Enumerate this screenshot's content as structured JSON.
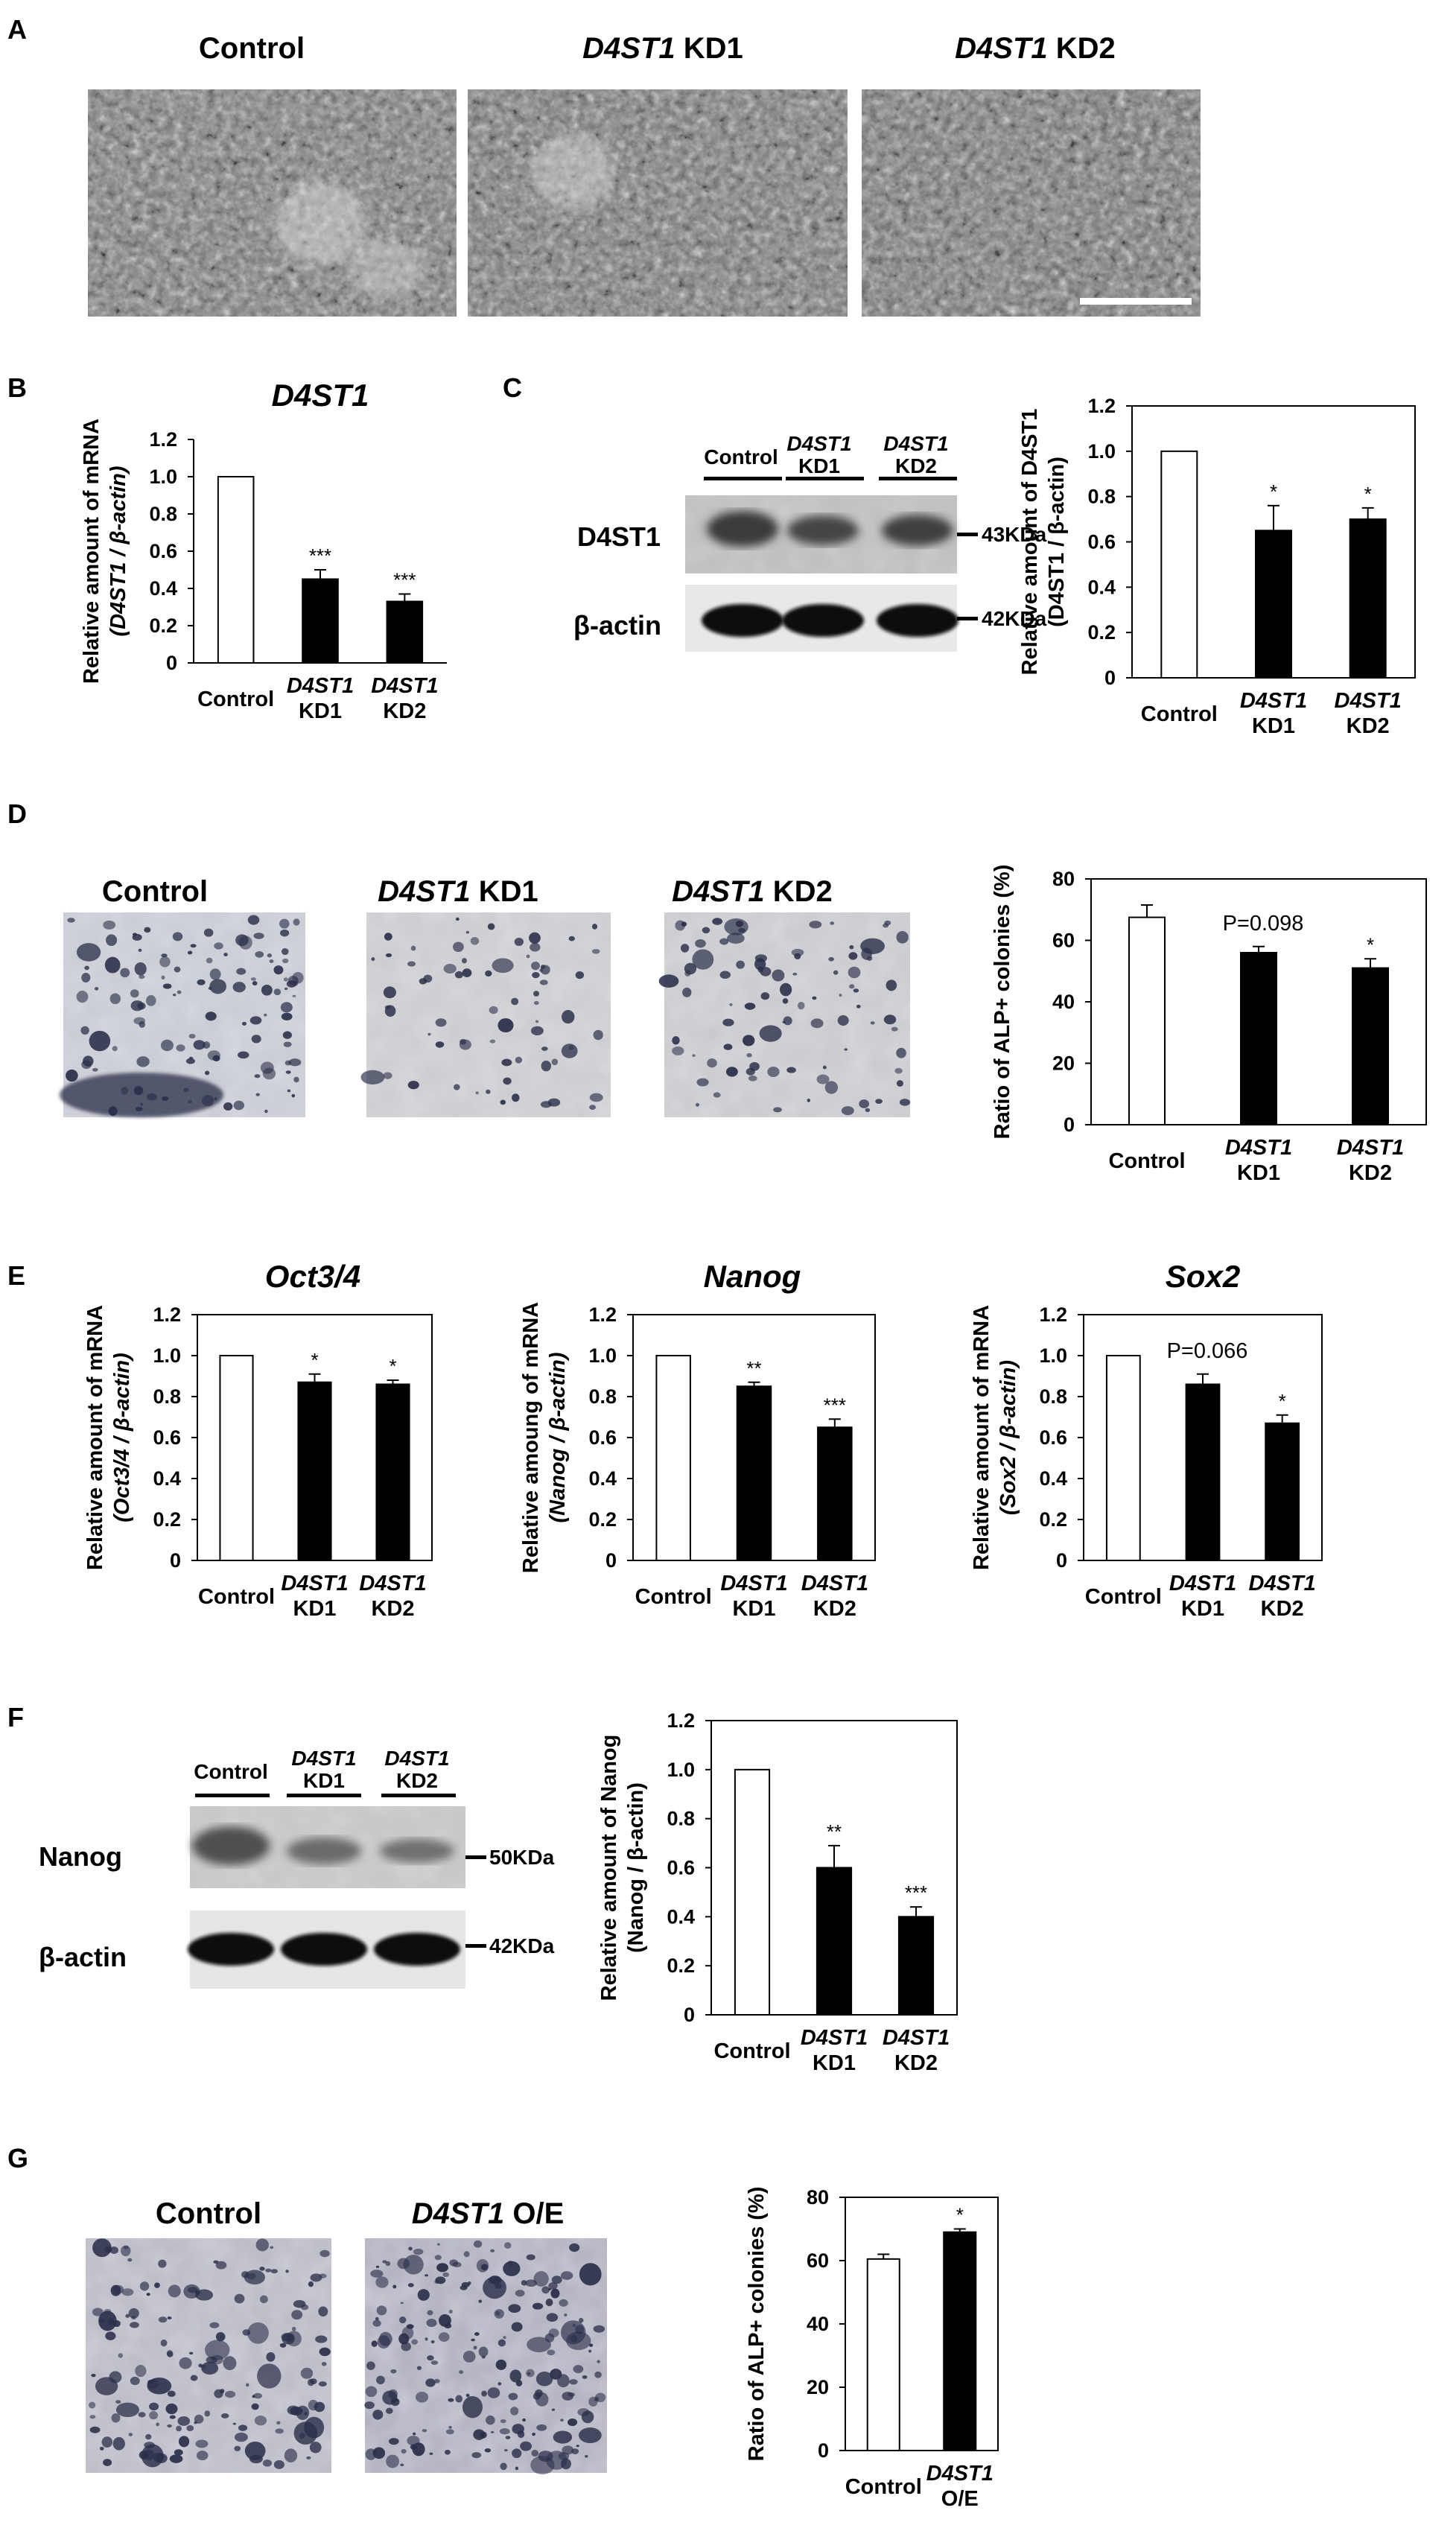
{
  "panels": {
    "A": {
      "letter": "A",
      "images": [
        {
          "gene": "",
          "label": "Control"
        },
        {
          "gene": "D4ST1",
          "label": " KD1"
        },
        {
          "gene": "D4ST1",
          "label": " KD2"
        }
      ]
    },
    "B": {
      "letter": "B"
    },
    "C": {
      "letter": "C",
      "blot": {
        "lanes": [
          {
            "line1": "Control",
            "line2": ""
          },
          {
            "line1": "D4ST1",
            "line2": "KD1"
          },
          {
            "line1": "D4ST1",
            "line2": "KD2"
          }
        ],
        "rows": [
          {
            "protein": "D4ST1",
            "size": "43KDa"
          },
          {
            "protein": "β-actin",
            "size": "42KDa"
          }
        ]
      }
    },
    "D": {
      "letter": "D",
      "images": [
        {
          "gene": "",
          "label": "Control"
        },
        {
          "gene": "D4ST1",
          "label": " KD1"
        },
        {
          "gene": "D4ST1",
          "label": " KD2"
        }
      ]
    },
    "E": {
      "letter": "E"
    },
    "F": {
      "letter": "F",
      "blot": {
        "lanes": [
          {
            "line1": "Control",
            "line2": ""
          },
          {
            "line1": "D4ST1",
            "line2": "KD1"
          },
          {
            "line1": "D4ST1",
            "line2": "KD2"
          }
        ],
        "rows": [
          {
            "protein": "Nanog",
            "size": "50KDa"
          },
          {
            "protein": "β-actin",
            "size": "42KDa"
          }
        ]
      }
    },
    "G": {
      "letter": "G",
      "images": [
        {
          "gene": "",
          "label": "Control"
        },
        {
          "gene": "D4ST1",
          "label": " O/E"
        }
      ]
    }
  },
  "colors": {
    "control_bar": "#ffffff",
    "treated_bar": "#000000",
    "image_gray": "#8a8a8a",
    "stain": "#2a2f4a"
  },
  "chart_data": [
    {
      "id": "B",
      "type": "bar",
      "title": "D4ST1",
      "title_italic": true,
      "ylabel_line1": "Relative amount of mRNA",
      "ylabel_line2": "(D4ST1 / β-actin)",
      "ylabel_line2_italic": true,
      "categories": [
        [
          "Control"
        ],
        [
          "D4ST1",
          "KD1"
        ],
        [
          "D4ST1",
          "KD2"
        ]
      ],
      "values": [
        1.0,
        0.45,
        0.33
      ],
      "errors": [
        0,
        0.05,
        0.04
      ],
      "annotations": [
        "",
        "***",
        "***"
      ],
      "ylim": [
        0,
        1.2
      ],
      "yticks": [
        "0",
        "0.2",
        "0.4",
        "0.6",
        "0.8",
        "1.0",
        "1.2"
      ],
      "frame": "axes"
    },
    {
      "id": "C",
      "type": "bar",
      "title": "",
      "ylabel_line1": "Relative amount of D4ST1",
      "ylabel_line2": "(D4ST1 / β-actin)",
      "ylabel_line2_italic": false,
      "categories": [
        [
          "Control"
        ],
        [
          "D4ST1",
          "KD1"
        ],
        [
          "D4ST1",
          "KD2"
        ]
      ],
      "values": [
        1.0,
        0.65,
        0.7
      ],
      "errors": [
        0,
        0.11,
        0.05
      ],
      "annotations": [
        "",
        "*",
        "*"
      ],
      "ylim": [
        0,
        1.2
      ],
      "yticks": [
        "0",
        "0.2",
        "0.4",
        "0.6",
        "0.8",
        "1.0",
        "1.2"
      ],
      "frame": "box"
    },
    {
      "id": "D",
      "type": "bar",
      "title": "",
      "ylabel_line1": "Ratio of ALP+ colonies (%)",
      "ylabel_line2": "",
      "ylabel_line2_italic": false,
      "categories": [
        [
          "Control"
        ],
        [
          "D4ST1",
          "KD1"
        ],
        [
          "D4ST1",
          "KD2"
        ]
      ],
      "values": [
        67.5,
        56,
        51
      ],
      "errors": [
        4,
        2,
        3
      ],
      "annotations": [
        "",
        "",
        "*"
      ],
      "note": "P=0.098",
      "ylim": [
        0,
        80
      ],
      "yticks": [
        "0",
        "20",
        "40",
        "60",
        "80"
      ],
      "frame": "box"
    },
    {
      "id": "E1",
      "type": "bar",
      "title": "Oct3/4",
      "title_italic": true,
      "ylabel_line1": "Relative amount of mRNA",
      "ylabel_line2": "(Oct3/4 / β-actin)",
      "ylabel_line2_italic": true,
      "categories": [
        [
          "Control"
        ],
        [
          "D4ST1",
          "KD1"
        ],
        [
          "D4ST1",
          "KD2"
        ]
      ],
      "values": [
        1.0,
        0.87,
        0.86
      ],
      "errors": [
        0,
        0.04,
        0.02
      ],
      "annotations": [
        "",
        "*",
        "*"
      ],
      "ylim": [
        0,
        1.2
      ],
      "yticks": [
        "0",
        "0.2",
        "0.4",
        "0.6",
        "0.8",
        "1.0",
        "1.2"
      ],
      "frame": "box"
    },
    {
      "id": "E2",
      "type": "bar",
      "title": "Nanog",
      "title_italic": true,
      "ylabel_line1": "Relative amoung of mRNA",
      "ylabel_line2": "(Nanog / β-actin)",
      "ylabel_line2_italic": true,
      "categories": [
        [
          "Control"
        ],
        [
          "D4ST1",
          "KD1"
        ],
        [
          "D4ST1",
          "KD2"
        ]
      ],
      "values": [
        1.0,
        0.85,
        0.65
      ],
      "errors": [
        0,
        0.02,
        0.04
      ],
      "annotations": [
        "",
        "**",
        "***"
      ],
      "ylim": [
        0,
        1.2
      ],
      "yticks": [
        "0",
        "0.2",
        "0.4",
        "0.6",
        "0.8",
        "1.0",
        "1.2"
      ],
      "frame": "box"
    },
    {
      "id": "E3",
      "type": "bar",
      "title": "Sox2",
      "title_italic": true,
      "ylabel_line1": "Relative amount of mRNA",
      "ylabel_line2": "(Sox2 / β-actin)",
      "ylabel_line2_italic": true,
      "categories": [
        [
          "Control"
        ],
        [
          "D4ST1",
          "KD1"
        ],
        [
          "D4ST1",
          "KD2"
        ]
      ],
      "values": [
        1.0,
        0.86,
        0.67
      ],
      "errors": [
        0,
        0.05,
        0.04
      ],
      "annotations": [
        "",
        "",
        "*"
      ],
      "note": "P=0.066",
      "ylim": [
        0,
        1.2
      ],
      "yticks": [
        "0",
        "0.2",
        "0.4",
        "0.6",
        "0.8",
        "1.0",
        "1.2"
      ],
      "frame": "box"
    },
    {
      "id": "F",
      "type": "bar",
      "title": "",
      "ylabel_line1": "Relative amount of Nanog",
      "ylabel_line2": "(Nanog / β-actin)",
      "ylabel_line2_italic": false,
      "categories": [
        [
          "Control"
        ],
        [
          "D4ST1",
          "KD1"
        ],
        [
          "D4ST1",
          "KD2"
        ]
      ],
      "values": [
        1.0,
        0.6,
        0.4
      ],
      "errors": [
        0,
        0.09,
        0.04
      ],
      "annotations": [
        "",
        "**",
        "***"
      ],
      "ylim": [
        0,
        1.2
      ],
      "yticks": [
        "0",
        "0.2",
        "0.4",
        "0.6",
        "0.8",
        "1.0",
        "1.2"
      ],
      "frame": "box"
    },
    {
      "id": "G",
      "type": "bar",
      "title": "",
      "ylabel_line1": "Ratio of ALP+ colonies (%)",
      "ylabel_line2": "",
      "ylabel_line2_italic": false,
      "categories": [
        [
          "Control"
        ],
        [
          "D4ST1",
          "O/E"
        ]
      ],
      "values": [
        60.5,
        69
      ],
      "errors": [
        1.5,
        1
      ],
      "annotations": [
        "",
        "*"
      ],
      "ylim": [
        0,
        80
      ],
      "yticks": [
        "0",
        "20",
        "40",
        "60",
        "80"
      ],
      "frame": "box"
    }
  ]
}
